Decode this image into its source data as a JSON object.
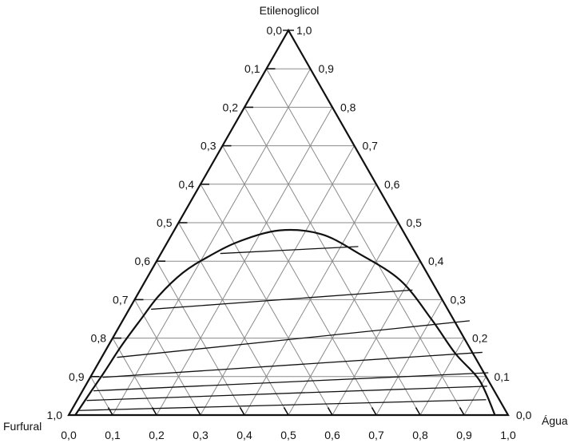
{
  "chart_data": {
    "type": "ternary",
    "vertices": {
      "top": "Etilenoglicol",
      "left": "Furfural",
      "right": "Água"
    },
    "ticks": [
      "0,0",
      "0,1",
      "0,2",
      "0,3",
      "0,4",
      "0,5",
      "0,6",
      "0,7",
      "0,8",
      "0,9",
      "1,0"
    ],
    "colors": {
      "outline": "#111111",
      "grid": "#8a8a8a"
    },
    "binodal_curve": [
      [
        0.97,
        0.0
      ],
      [
        0.89,
        0.09
      ],
      [
        0.8,
        0.16
      ],
      [
        0.7,
        0.25
      ],
      [
        0.58,
        0.35
      ],
      [
        0.45,
        0.42
      ],
      [
        0.34,
        0.47
      ],
      [
        0.24,
        0.48
      ],
      [
        0.16,
        0.45
      ],
      [
        0.11,
        0.41
      ],
      [
        0.075,
        0.37
      ],
      [
        0.05,
        0.31
      ],
      [
        0.04,
        0.25
      ],
      [
        0.03,
        0.18
      ],
      [
        0.025,
        0.11
      ],
      [
        0.02,
        0.06
      ],
      [
        0.015,
        0.0
      ]
    ],
    "tie_lines": [
      [
        [
          0.44,
          0.438
        ],
        [
          0.135,
          0.42
        ]
      ],
      [
        [
          0.62,
          0.325
        ],
        [
          0.05,
          0.275
        ]
      ],
      [
        [
          0.79,
          0.245
        ],
        [
          0.035,
          0.15
        ]
      ],
      [
        [
          0.86,
          0.163
        ],
        [
          0.028,
          0.098
        ]
      ],
      [
        [
          0.9,
          0.11
        ],
        [
          0.025,
          0.063
        ]
      ],
      [
        [
          0.915,
          0.075
        ],
        [
          0.022,
          0.038
        ]
      ],
      [
        [
          0.93,
          0.04
        ],
        [
          0.018,
          0.012
        ]
      ]
    ]
  }
}
